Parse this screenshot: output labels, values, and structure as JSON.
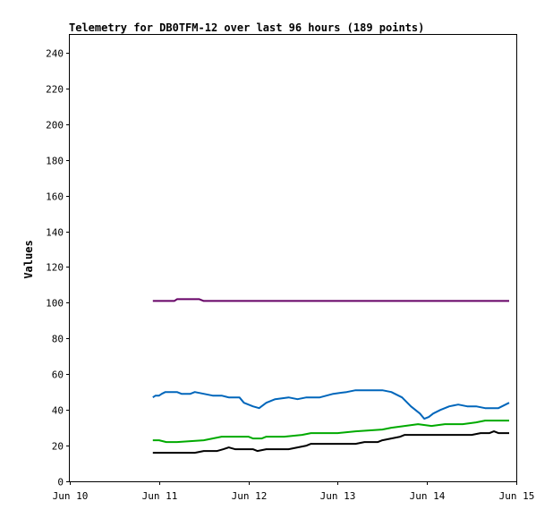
{
  "chart_data": {
    "type": "line",
    "title": "Telemetry for DB0TFM-12 over last 96 hours (189 points)",
    "xlabel": "",
    "ylabel": "Values",
    "x_range": [
      "Jun 10",
      "Jun 15"
    ],
    "ylim": [
      0,
      250
    ],
    "x_ticks": [
      "Jun 10",
      "Jun 11",
      "Jun 12",
      "Jun 13",
      "Jun 14",
      "Jun 15"
    ],
    "y_ticks": [
      0,
      20,
      40,
      60,
      80,
      100,
      120,
      140,
      160,
      180,
      200,
      220,
      240
    ],
    "grid": false,
    "legend": "none",
    "x_units": "days since Jun 10 00:00",
    "series": [
      {
        "color": "#660066",
        "points": [
          [
            0.93,
            101
          ],
          [
            1.17,
            101
          ],
          [
            1.2,
            102
          ],
          [
            1.45,
            102
          ],
          [
            1.5,
            101
          ],
          [
            2.0,
            101
          ],
          [
            3.0,
            101
          ],
          [
            4.0,
            101
          ],
          [
            4.92,
            101
          ]
        ]
      },
      {
        "color": "#0066bb",
        "points": [
          [
            0.93,
            47
          ],
          [
            0.96,
            48
          ],
          [
            1.0,
            48
          ],
          [
            1.03,
            49
          ],
          [
            1.07,
            50
          ],
          [
            1.2,
            50
          ],
          [
            1.25,
            49
          ],
          [
            1.35,
            49
          ],
          [
            1.4,
            50
          ],
          [
            1.5,
            49
          ],
          [
            1.6,
            48
          ],
          [
            1.7,
            48
          ],
          [
            1.78,
            47
          ],
          [
            1.9,
            47
          ],
          [
            1.95,
            44
          ],
          [
            2.05,
            42
          ],
          [
            2.12,
            41
          ],
          [
            2.2,
            44
          ],
          [
            2.3,
            46
          ],
          [
            2.45,
            47
          ],
          [
            2.55,
            46
          ],
          [
            2.65,
            47
          ],
          [
            2.8,
            47
          ],
          [
            2.95,
            49
          ],
          [
            3.1,
            50
          ],
          [
            3.2,
            51
          ],
          [
            3.3,
            51
          ],
          [
            3.5,
            51
          ],
          [
            3.6,
            50
          ],
          [
            3.72,
            47
          ],
          [
            3.82,
            42
          ],
          [
            3.92,
            38
          ],
          [
            3.97,
            35
          ],
          [
            4.02,
            36
          ],
          [
            4.07,
            38
          ],
          [
            4.15,
            40
          ],
          [
            4.25,
            42
          ],
          [
            4.35,
            43
          ],
          [
            4.45,
            42
          ],
          [
            4.55,
            42
          ],
          [
            4.65,
            41
          ],
          [
            4.8,
            41
          ],
          [
            4.88,
            43
          ],
          [
            4.92,
            44
          ]
        ]
      },
      {
        "color": "#00aa00",
        "points": [
          [
            0.93,
            23
          ],
          [
            1.0,
            23
          ],
          [
            1.08,
            22
          ],
          [
            1.2,
            22
          ],
          [
            1.5,
            23
          ],
          [
            1.6,
            24
          ],
          [
            1.7,
            25
          ],
          [
            1.8,
            25
          ],
          [
            2.0,
            25
          ],
          [
            2.05,
            24
          ],
          [
            2.15,
            24
          ],
          [
            2.2,
            25
          ],
          [
            2.4,
            25
          ],
          [
            2.6,
            26
          ],
          [
            2.7,
            27
          ],
          [
            3.0,
            27
          ],
          [
            3.2,
            28
          ],
          [
            3.5,
            29
          ],
          [
            3.6,
            30
          ],
          [
            3.75,
            31
          ],
          [
            3.9,
            32
          ],
          [
            4.05,
            31
          ],
          [
            4.2,
            32
          ],
          [
            4.4,
            32
          ],
          [
            4.55,
            33
          ],
          [
            4.65,
            34
          ],
          [
            4.92,
            34
          ]
        ]
      },
      {
        "color": "#000000",
        "points": [
          [
            0.93,
            16
          ],
          [
            1.4,
            16
          ],
          [
            1.5,
            17
          ],
          [
            1.65,
            17
          ],
          [
            1.72,
            18
          ],
          [
            1.78,
            19
          ],
          [
            1.85,
            18
          ],
          [
            2.05,
            18
          ],
          [
            2.1,
            17
          ],
          [
            2.2,
            18
          ],
          [
            2.45,
            18
          ],
          [
            2.55,
            19
          ],
          [
            2.65,
            20
          ],
          [
            2.7,
            21
          ],
          [
            3.2,
            21
          ],
          [
            3.3,
            22
          ],
          [
            3.45,
            22
          ],
          [
            3.5,
            23
          ],
          [
            3.6,
            24
          ],
          [
            3.7,
            25
          ],
          [
            3.75,
            26
          ],
          [
            4.4,
            26
          ],
          [
            4.5,
            26
          ],
          [
            4.6,
            27
          ],
          [
            4.7,
            27
          ],
          [
            4.75,
            28
          ],
          [
            4.8,
            27
          ],
          [
            4.92,
            27
          ]
        ]
      }
    ]
  }
}
